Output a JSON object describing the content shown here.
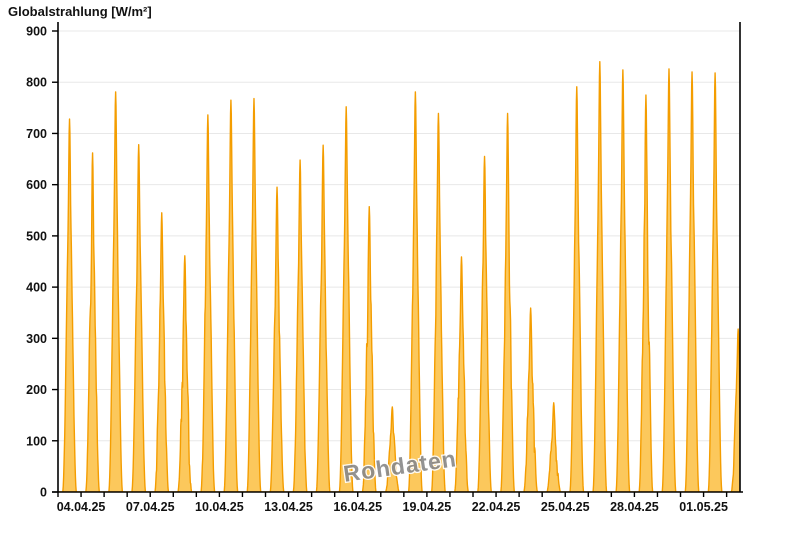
{
  "header": {
    "title": "Globalstrahlung [W/m²]"
  },
  "watermark": {
    "text": "Rohdaten"
  },
  "chart_data": {
    "type": "area",
    "title": "Globalstrahlung [W/m²]",
    "ylabel": "Globalstrahlung [W/m²]",
    "xlabel": "",
    "ylim": [
      0,
      900
    ],
    "ytick_interval": 100,
    "ytick_labels": [
      "0",
      "100",
      "200",
      "300",
      "400",
      "500",
      "600",
      "700",
      "800",
      "900"
    ],
    "grid": "horizontal-only",
    "legend": "none",
    "x_start": "03.04.25",
    "x_end": "02.05.25",
    "xtick_every_days": 1,
    "xtick_labels": [
      "04.04.25",
      "07.04.25",
      "10.04.25",
      "13.04.25",
      "16.04.25",
      "19.04.25",
      "22.04.25",
      "25.04.25",
      "28.04.25",
      "01.05.25"
    ],
    "xtick_label_day_indices": [
      1,
      4,
      7,
      10,
      13,
      16,
      19,
      22,
      25,
      28
    ],
    "series": [
      {
        "name": "Globalstrahlung Rohdaten",
        "unit": "W/m²",
        "daily_peaks": [
          {
            "date": "03.04.25",
            "peak": 728,
            "variability": 0.1
          },
          {
            "date": "04.04.25",
            "peak": 662,
            "variability": 0.38
          },
          {
            "date": "05.04.25",
            "peak": 781,
            "variability": 0.1
          },
          {
            "date": "06.04.25",
            "peak": 678,
            "variability": 0.15
          },
          {
            "date": "07.04.25",
            "peak": 545,
            "variability": 0.55
          },
          {
            "date": "08.04.25",
            "peak": 461,
            "variability": 0.55
          },
          {
            "date": "09.04.25",
            "peak": 736,
            "variability": 0.32
          },
          {
            "date": "10.04.25",
            "peak": 765,
            "variability": 0.14
          },
          {
            "date": "11.04.25",
            "peak": 768,
            "variability": 0.1
          },
          {
            "date": "12.04.25",
            "peak": 595,
            "variability": 0.3
          },
          {
            "date": "13.04.25",
            "peak": 648,
            "variability": 0.25
          },
          {
            "date": "14.04.25",
            "peak": 677,
            "variability": 0.2
          },
          {
            "date": "15.04.25",
            "peak": 752,
            "variability": 0.18
          },
          {
            "date": "16.04.25",
            "peak": 557,
            "variability": 0.5
          },
          {
            "date": "17.04.25",
            "peak": 166,
            "variability": 0.5
          },
          {
            "date": "18.04.25",
            "peak": 781,
            "variability": 0.12
          },
          {
            "date": "19.04.25",
            "peak": 739,
            "variability": 0.18
          },
          {
            "date": "20.04.25",
            "peak": 459,
            "variability": 0.45
          },
          {
            "date": "21.04.25",
            "peak": 655,
            "variability": 0.22
          },
          {
            "date": "22.04.25",
            "peak": 739,
            "variability": 0.28
          },
          {
            "date": "23.04.25",
            "peak": 359,
            "variability": 0.45
          },
          {
            "date": "24.04.25",
            "peak": 174,
            "variability": 0.5
          },
          {
            "date": "25.04.25",
            "peak": 791,
            "variability": 0.12
          },
          {
            "date": "26.04.25",
            "peak": 840,
            "variability": 0.1
          },
          {
            "date": "27.04.25",
            "peak": 824,
            "variability": 0.1
          },
          {
            "date": "28.04.25",
            "peak": 775,
            "variability": 0.35
          },
          {
            "date": "29.04.25",
            "peak": 826,
            "variability": 0.1
          },
          {
            "date": "30.04.25",
            "peak": 820,
            "variability": 0.1
          },
          {
            "date": "01.05.25",
            "peak": 818,
            "variability": 0.12
          },
          {
            "date": "02.05.25",
            "peak": 318,
            "variability": 0.4
          }
        ]
      }
    ],
    "colors": {
      "fill": "#fcc85c",
      "stroke": "#f49d00",
      "grid": "#e8e8e8",
      "axis": "#000000",
      "label": "#111111",
      "watermark": "#8a8a8a",
      "background": "#ffffff"
    }
  }
}
